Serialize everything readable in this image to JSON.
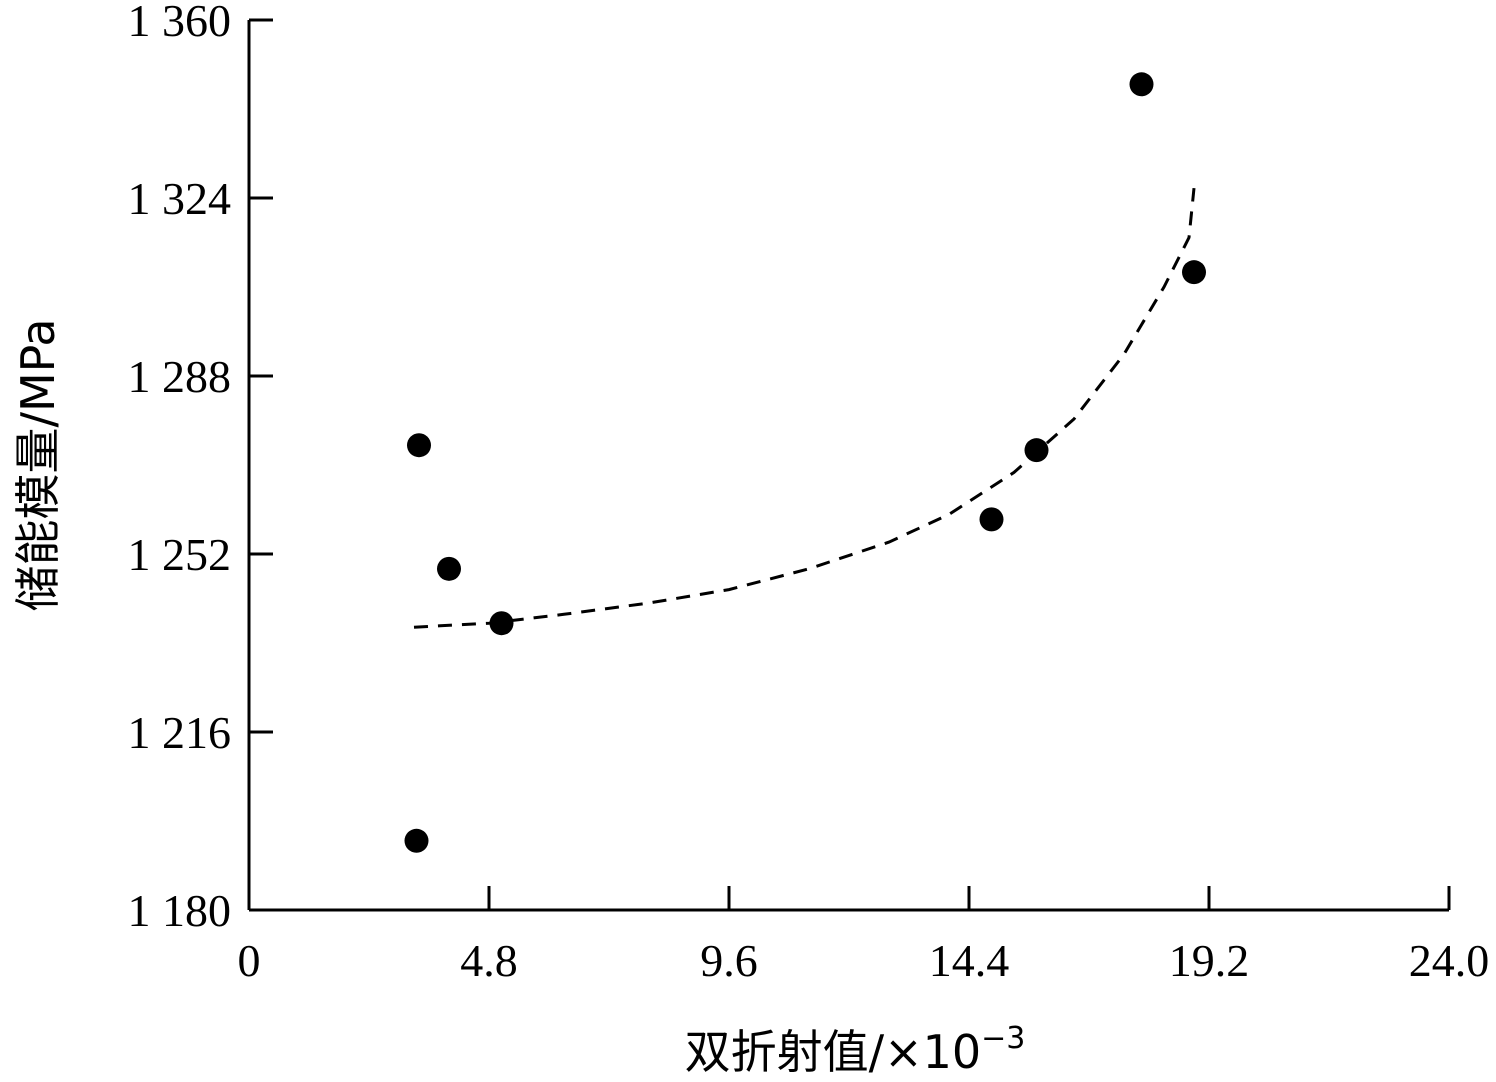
{
  "chart_data": {
    "type": "scatter",
    "xlabel": "双折射值/×10",
    "xlabel_exponent": "−3",
    "ylabel": "储能模量/MPa",
    "xlim": [
      0,
      24.0
    ],
    "ylim": [
      1180,
      1360
    ],
    "x_ticks": [
      "0",
      "4.8",
      "9.6",
      "14.4",
      "19.2",
      "24.0"
    ],
    "y_ticks": [
      "1 180",
      "1 216",
      "1 252",
      "1 288",
      "1 324",
      "1 360"
    ],
    "grid": false,
    "legend": "none",
    "series": [
      {
        "points": [
          {
            "x": 3.4,
            "y": 1274
          },
          {
            "x": 4.0,
            "y": 1249
          },
          {
            "x": 5.05,
            "y": 1238
          },
          {
            "x": 3.35,
            "y": 1194
          },
          {
            "x": 14.85,
            "y": 1259
          },
          {
            "x": 15.75,
            "y": 1273
          },
          {
            "x": 17.85,
            "y": 1347
          },
          {
            "x": 18.9,
            "y": 1309
          }
        ]
      }
    ],
    "trend_line": {
      "style": "dashed",
      "points": [
        {
          "x": 3.3,
          "y": 1237.2
        },
        {
          "x": 4.8,
          "y": 1238.0
        },
        {
          "x": 6.3,
          "y": 1239.8
        },
        {
          "x": 8.0,
          "y": 1242.1
        },
        {
          "x": 9.6,
          "y": 1244.8
        },
        {
          "x": 11.2,
          "y": 1249.0
        },
        {
          "x": 12.8,
          "y": 1254.4
        },
        {
          "x": 14.0,
          "y": 1260.0
        },
        {
          "x": 15.3,
          "y": 1268.5
        },
        {
          "x": 16.5,
          "y": 1279.3
        },
        {
          "x": 17.5,
          "y": 1292.4
        },
        {
          "x": 18.3,
          "y": 1306.0
        },
        {
          "x": 18.8,
          "y": 1316.0
        },
        {
          "x": 18.9,
          "y": 1326.0
        }
      ]
    }
  }
}
